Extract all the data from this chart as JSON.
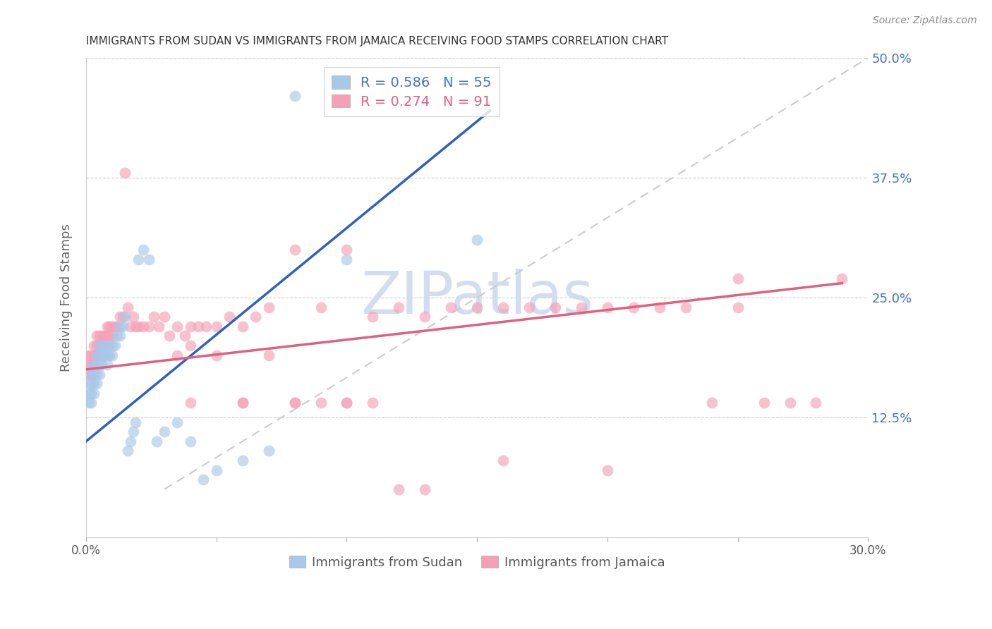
{
  "title": "IMMIGRANTS FROM SUDAN VS IMMIGRANTS FROM JAMAICA RECEIVING FOOD STAMPS CORRELATION CHART",
  "source": "Source: ZipAtlas.com",
  "ylabel": "Receiving Food Stamps",
  "xlim": [
    0.0,
    0.3
  ],
  "ylim": [
    0.0,
    0.5
  ],
  "color_sudan": "#a8c8e8",
  "color_jamaica": "#f5a0b8",
  "color_sudan_line": "#3060c0",
  "color_jamaica_line": "#e06080",
  "color_ref_line": "#cccccc",
  "watermark": "ZIPatlas",
  "watermark_zip_color": "#c8d8f0",
  "watermark_atlas_color": "#d0c8e8",
  "background_color": "#ffffff",
  "grid_color": "#cccccc",
  "title_color": "#333333",
  "right_tick_color": "#4472c4",
  "legend1_r_color": "#4472c4",
  "legend2_r_color": "#e06080",
  "legend1_n_color": "#4472c4",
  "legend2_n_color": "#e06080",
  "sudan_R": 0.586,
  "sudan_N": 55,
  "jamaica_R": 0.274,
  "jamaica_N": 91,
  "sudan_line_x0": 0.0,
  "sudan_line_y0": 0.1,
  "sudan_line_x1": 0.155,
  "sudan_line_y1": 0.445,
  "jamaica_line_x0": 0.0,
  "jamaica_line_y0": 0.175,
  "jamaica_line_x1": 0.29,
  "jamaica_line_y1": 0.265,
  "sudan_x": [
    0.001,
    0.001,
    0.001,
    0.002,
    0.002,
    0.002,
    0.002,
    0.003,
    0.003,
    0.003,
    0.003,
    0.004,
    0.004,
    0.004,
    0.004,
    0.005,
    0.005,
    0.005,
    0.005,
    0.006,
    0.006,
    0.006,
    0.007,
    0.007,
    0.008,
    0.008,
    0.008,
    0.009,
    0.009,
    0.01,
    0.01,
    0.011,
    0.012,
    0.013,
    0.013,
    0.014,
    0.015,
    0.016,
    0.017,
    0.018,
    0.019,
    0.02,
    0.022,
    0.024,
    0.027,
    0.03,
    0.035,
    0.04,
    0.045,
    0.05,
    0.06,
    0.07,
    0.08,
    0.1,
    0.15
  ],
  "sudan_y": [
    0.14,
    0.15,
    0.16,
    0.14,
    0.15,
    0.16,
    0.17,
    0.15,
    0.16,
    0.17,
    0.18,
    0.16,
    0.17,
    0.18,
    0.19,
    0.17,
    0.18,
    0.19,
    0.2,
    0.18,
    0.19,
    0.2,
    0.19,
    0.2,
    0.18,
    0.19,
    0.2,
    0.19,
    0.2,
    0.19,
    0.2,
    0.2,
    0.21,
    0.21,
    0.22,
    0.22,
    0.23,
    0.09,
    0.1,
    0.11,
    0.12,
    0.29,
    0.3,
    0.29,
    0.1,
    0.11,
    0.12,
    0.1,
    0.06,
    0.07,
    0.08,
    0.09,
    0.46,
    0.29,
    0.31
  ],
  "jamaica_x": [
    0.001,
    0.001,
    0.001,
    0.002,
    0.002,
    0.002,
    0.003,
    0.003,
    0.003,
    0.004,
    0.004,
    0.004,
    0.005,
    0.005,
    0.005,
    0.006,
    0.006,
    0.007,
    0.007,
    0.008,
    0.008,
    0.009,
    0.009,
    0.01,
    0.01,
    0.011,
    0.012,
    0.013,
    0.014,
    0.015,
    0.016,
    0.017,
    0.018,
    0.019,
    0.02,
    0.022,
    0.024,
    0.026,
    0.028,
    0.03,
    0.032,
    0.035,
    0.038,
    0.04,
    0.043,
    0.046,
    0.05,
    0.055,
    0.06,
    0.065,
    0.07,
    0.08,
    0.09,
    0.1,
    0.11,
    0.12,
    0.13,
    0.14,
    0.15,
    0.16,
    0.17,
    0.18,
    0.19,
    0.2,
    0.21,
    0.22,
    0.23,
    0.24,
    0.25,
    0.26,
    0.27,
    0.28,
    0.29,
    0.035,
    0.04,
    0.05,
    0.06,
    0.07,
    0.08,
    0.09,
    0.1,
    0.11,
    0.12,
    0.04,
    0.06,
    0.08,
    0.1,
    0.13,
    0.16,
    0.2,
    0.25
  ],
  "jamaica_y": [
    0.17,
    0.18,
    0.19,
    0.17,
    0.18,
    0.19,
    0.18,
    0.19,
    0.2,
    0.19,
    0.2,
    0.21,
    0.19,
    0.2,
    0.21,
    0.2,
    0.21,
    0.2,
    0.21,
    0.21,
    0.22,
    0.21,
    0.22,
    0.21,
    0.22,
    0.22,
    0.22,
    0.23,
    0.23,
    0.38,
    0.24,
    0.22,
    0.23,
    0.22,
    0.22,
    0.22,
    0.22,
    0.23,
    0.22,
    0.23,
    0.21,
    0.22,
    0.21,
    0.22,
    0.22,
    0.22,
    0.22,
    0.23,
    0.22,
    0.23,
    0.24,
    0.3,
    0.24,
    0.3,
    0.23,
    0.24,
    0.23,
    0.24,
    0.24,
    0.24,
    0.24,
    0.24,
    0.24,
    0.24,
    0.24,
    0.24,
    0.24,
    0.14,
    0.24,
    0.14,
    0.14,
    0.14,
    0.27,
    0.19,
    0.2,
    0.19,
    0.14,
    0.19,
    0.14,
    0.14,
    0.14,
    0.14,
    0.05,
    0.14,
    0.14,
    0.14,
    0.14,
    0.05,
    0.08,
    0.07,
    0.27
  ]
}
